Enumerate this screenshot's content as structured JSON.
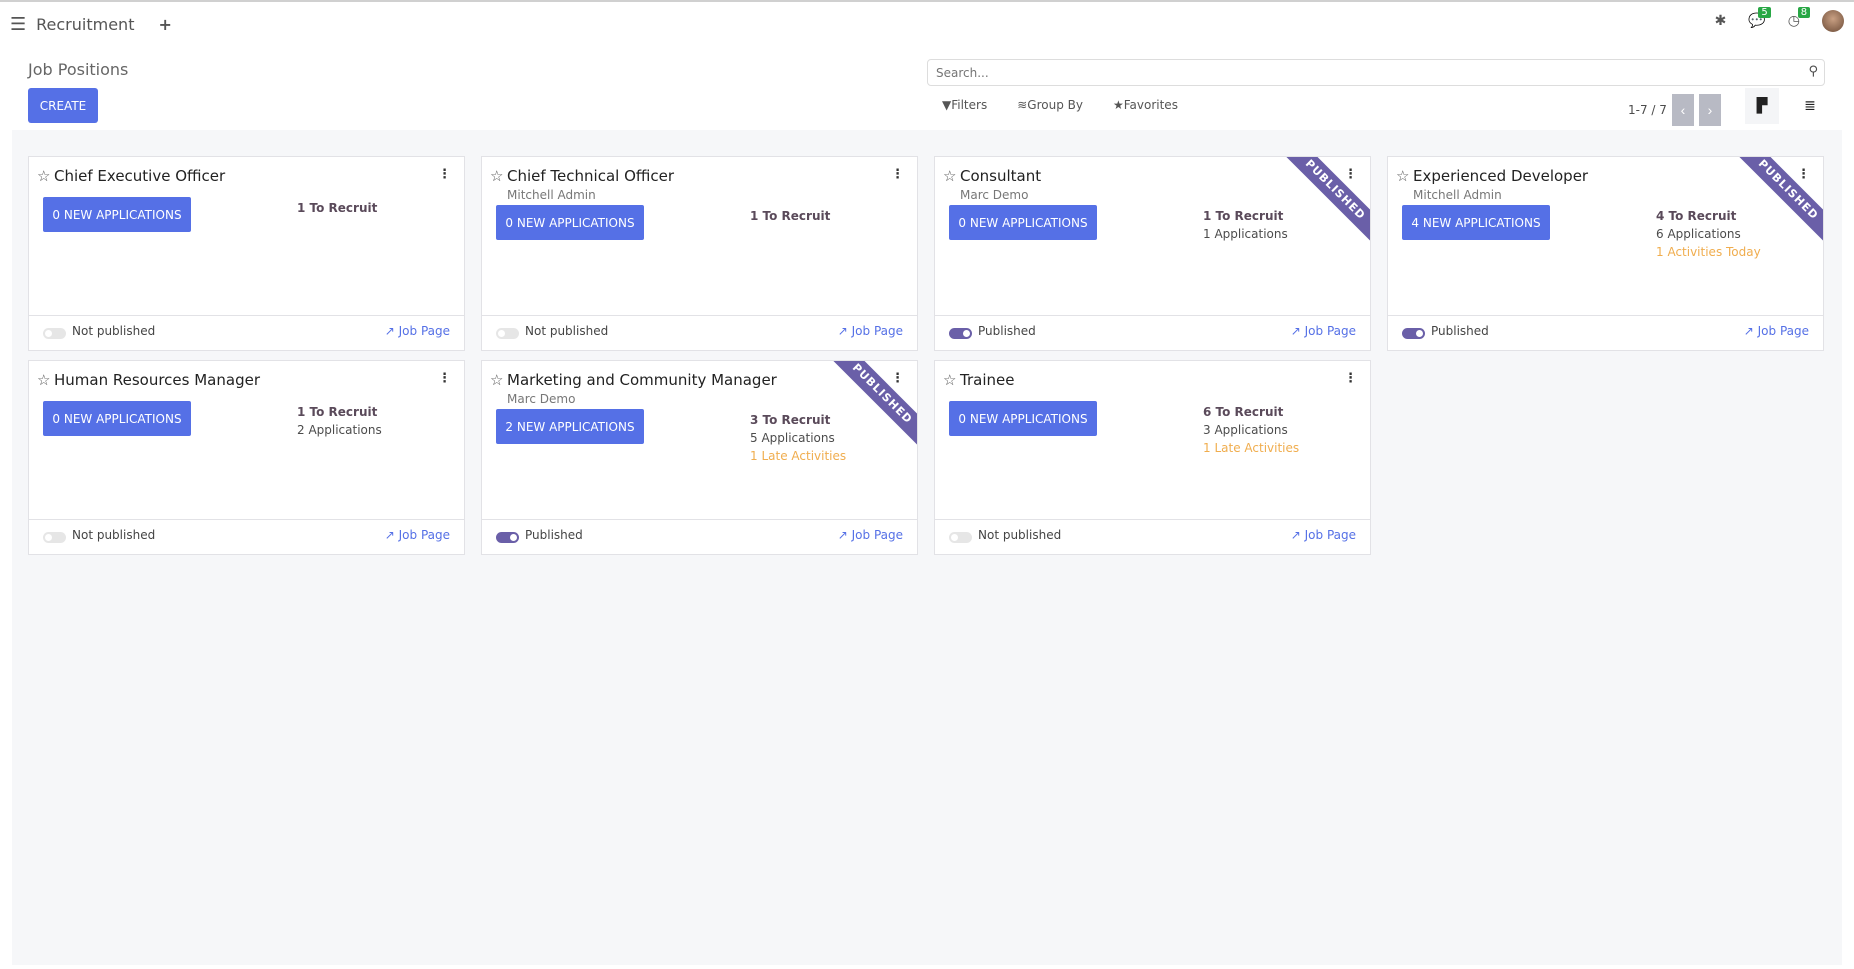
{
  "nav": {
    "menu_icon": "hamburger-icon",
    "app": "Recruitment",
    "plus": "+",
    "bug_icon": "bug-icon",
    "messages_badge": "5",
    "activities_badge": "8"
  },
  "control": {
    "title": "Job Positions",
    "create": "CREATE",
    "search_placeholder": "Search...",
    "filters": "Filters",
    "group_by": "Group By",
    "favorites": "Favorites",
    "pager": "1-7 / 7"
  },
  "colors": {
    "primary": "#5570e6",
    "ribbon": "#6a5fa8",
    "late": "#f0ad4e"
  },
  "cards": [
    {
      "title": "Chief Executive Officer",
      "sub": "",
      "button": "0 NEW APPLICATIONS",
      "recruit": "1 To Recruit",
      "apps": "",
      "activity": "",
      "published": false,
      "status": "Not published",
      "link": "Job Page",
      "ribbon": ""
    },
    {
      "title": "Chief Technical Officer",
      "sub": "Mitchell Admin",
      "button": "0 NEW APPLICATIONS",
      "recruit": "1 To Recruit",
      "apps": "",
      "activity": "",
      "published": false,
      "status": "Not published",
      "link": "Job Page",
      "ribbon": ""
    },
    {
      "title": "Consultant",
      "sub": "Marc Demo",
      "button": "0 NEW APPLICATIONS",
      "recruit": "1 To Recruit",
      "apps": "1 Applications",
      "activity": "",
      "published": true,
      "status": "Published",
      "link": "Job Page",
      "ribbon": "PUBLISHED"
    },
    {
      "title": "Experienced Developer",
      "sub": "Mitchell Admin",
      "button": "4 NEW APPLICATIONS",
      "recruit": "4 To Recruit",
      "apps": "6 Applications",
      "activity": "1 Activities Today",
      "published": true,
      "status": "Published",
      "link": "Job Page",
      "ribbon": "PUBLISHED"
    },
    {
      "title": "Human Resources Manager",
      "sub": "",
      "button": "0 NEW APPLICATIONS",
      "recruit": "1 To Recruit",
      "apps": "2 Applications",
      "activity": "",
      "published": false,
      "status": "Not published",
      "link": "Job Page",
      "ribbon": ""
    },
    {
      "title": "Marketing and Community Manager",
      "sub": "Marc Demo",
      "button": "2 NEW APPLICATIONS",
      "recruit": "3 To Recruit",
      "apps": "5 Applications",
      "activity": "1 Late Activities",
      "published": true,
      "status": "Published",
      "link": "Job Page",
      "ribbon": "PUBLISHED"
    },
    {
      "title": "Trainee",
      "sub": "",
      "button": "0 NEW APPLICATIONS",
      "recruit": "6 To Recruit",
      "apps": "3 Applications",
      "activity": "1 Late Activities",
      "published": false,
      "status": "Not published",
      "link": "Job Page",
      "ribbon": ""
    }
  ]
}
